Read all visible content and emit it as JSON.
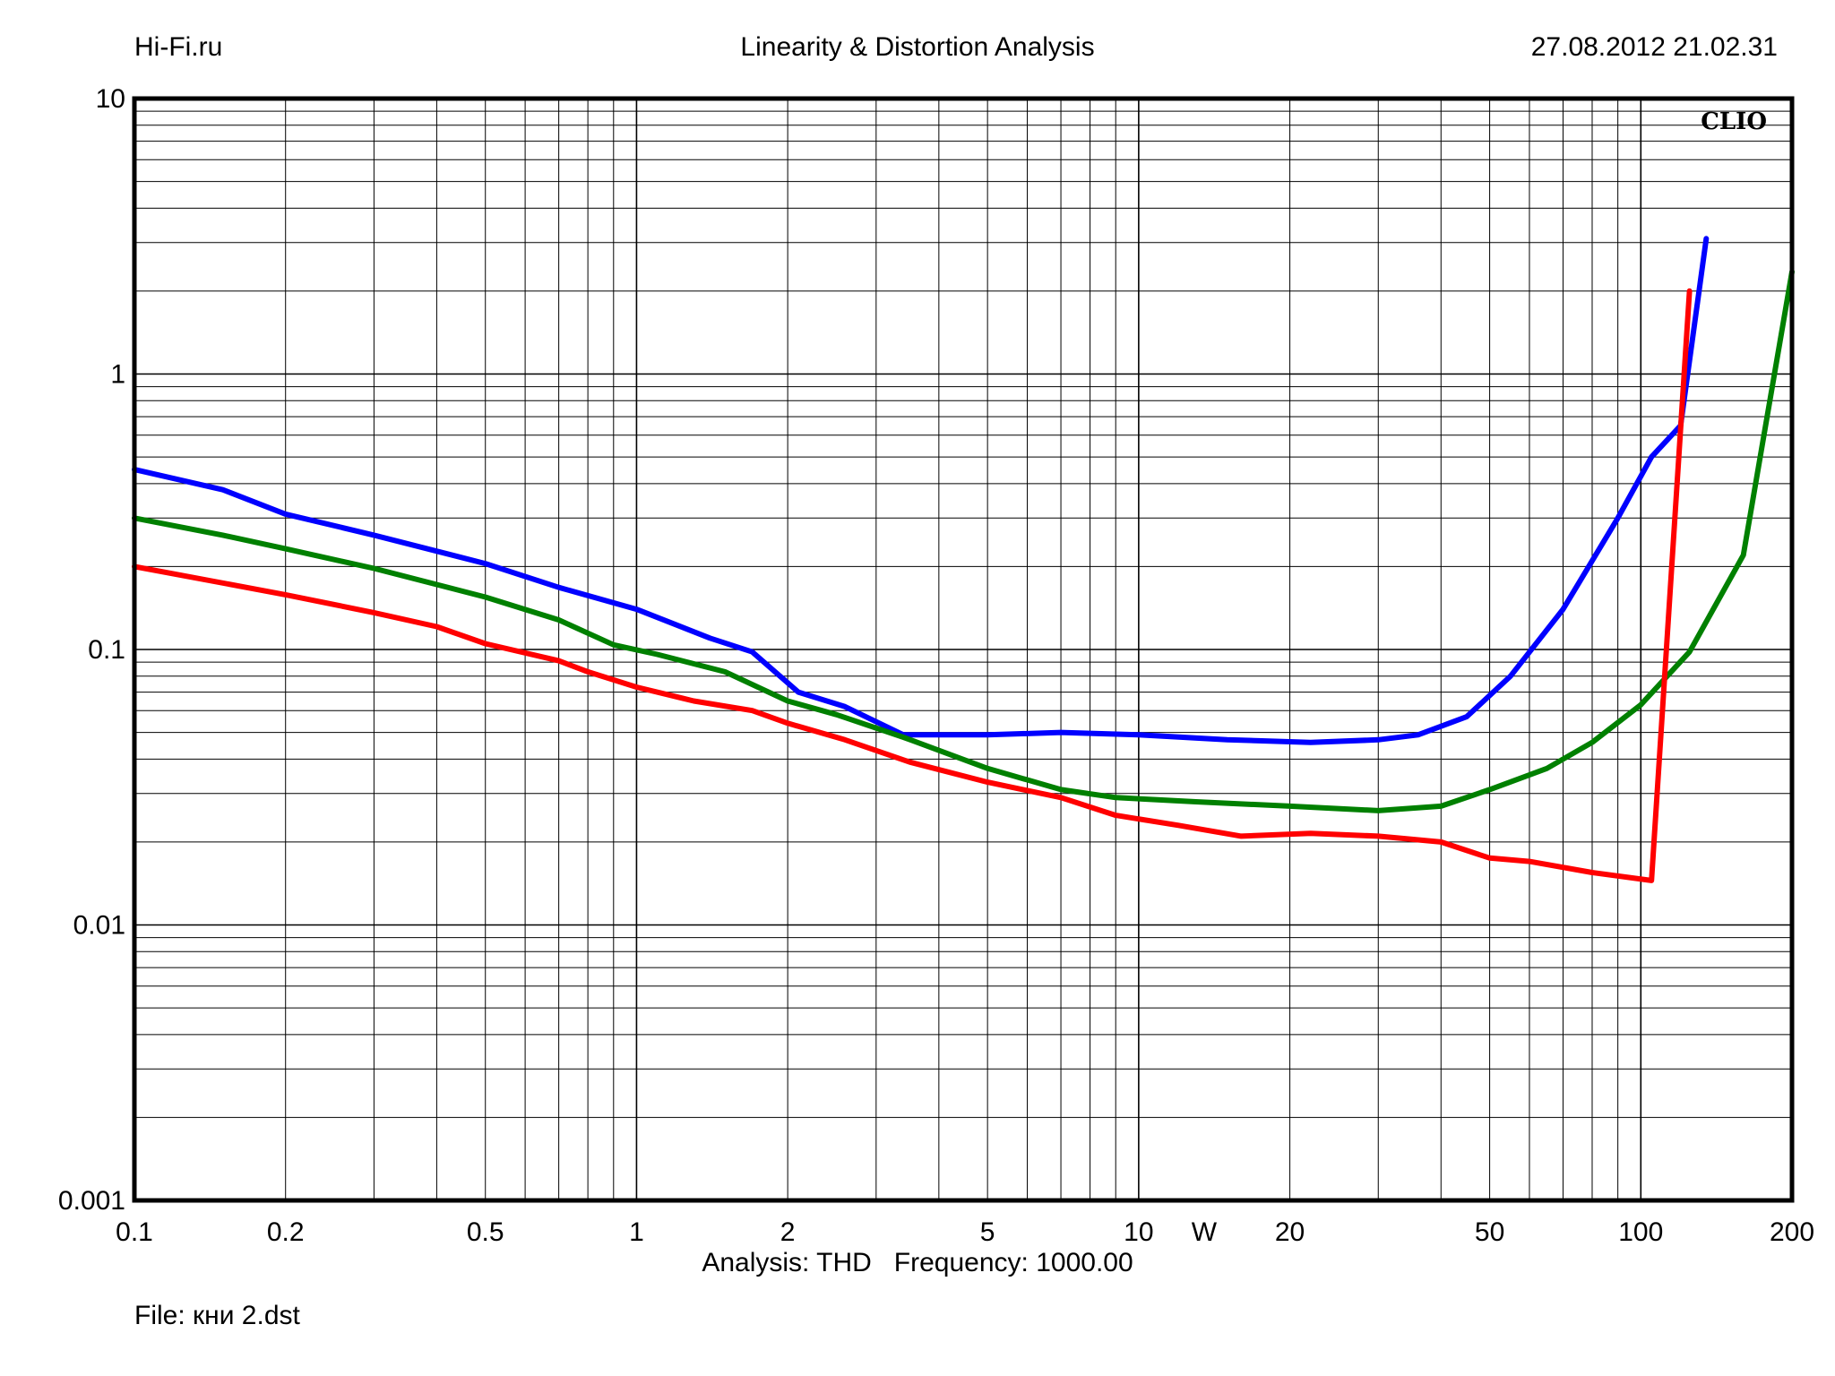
{
  "header": {
    "left": "Hi-Fi.ru",
    "center": "Linearity & Distortion Analysis",
    "right": "27.08.2012 21.02.31"
  },
  "watermark": "CLIO",
  "footer": {
    "analysis": "Analysis: THD   Frequency: 1000.00",
    "file": "File: кни 2.dst"
  },
  "chart_data": {
    "type": "line",
    "title": "Linearity & Distortion Analysis",
    "x_scale": "log",
    "y_scale": "log",
    "xlim": [
      0.1,
      200
    ],
    "ylim": [
      0.001,
      10
    ],
    "xlabel": "W",
    "grid": true,
    "x_ticks": [
      "0.1",
      "0.2",
      "0.5",
      "1",
      "2",
      "5",
      "10",
      "20",
      "50",
      "100",
      "200"
    ],
    "x_tick_values": [
      0.1,
      0.2,
      0.5,
      1,
      2,
      5,
      10,
      20,
      50,
      100,
      200
    ],
    "y_ticks": [
      "10",
      "1",
      "0.1",
      "0.01",
      "0.001"
    ],
    "y_tick_values": [
      10,
      1,
      0.1,
      0.01,
      0.001
    ],
    "series": [
      {
        "color": "#0000ff",
        "points": [
          [
            0.1,
            0.45
          ],
          [
            0.15,
            0.38
          ],
          [
            0.2,
            0.31
          ],
          [
            0.3,
            0.26
          ],
          [
            0.5,
            0.205
          ],
          [
            0.7,
            0.168
          ],
          [
            1,
            0.14
          ],
          [
            1.4,
            0.11
          ],
          [
            1.7,
            0.098
          ],
          [
            2.1,
            0.07
          ],
          [
            2.6,
            0.062
          ],
          [
            3.4,
            0.049
          ],
          [
            5,
            0.049
          ],
          [
            7,
            0.05
          ],
          [
            10,
            0.049
          ],
          [
            15,
            0.047
          ],
          [
            22,
            0.046
          ],
          [
            30,
            0.047
          ],
          [
            36,
            0.049
          ],
          [
            45,
            0.057
          ],
          [
            55,
            0.08
          ],
          [
            70,
            0.14
          ],
          [
            90,
            0.3
          ],
          [
            105,
            0.5
          ],
          [
            120,
            0.65
          ],
          [
            135,
            3.1
          ]
        ]
      },
      {
        "color": "#008000",
        "points": [
          [
            0.1,
            0.3
          ],
          [
            0.15,
            0.26
          ],
          [
            0.2,
            0.232
          ],
          [
            0.3,
            0.197
          ],
          [
            0.5,
            0.155
          ],
          [
            0.7,
            0.128
          ],
          [
            0.9,
            0.104
          ],
          [
            1.1,
            0.096
          ],
          [
            1.5,
            0.083
          ],
          [
            2,
            0.065
          ],
          [
            2.5,
            0.058
          ],
          [
            3.4,
            0.048
          ],
          [
            5,
            0.037
          ],
          [
            7,
            0.031
          ],
          [
            9,
            0.029
          ],
          [
            13,
            0.028
          ],
          [
            20,
            0.027
          ],
          [
            30,
            0.026
          ],
          [
            40,
            0.027
          ],
          [
            50,
            0.031
          ],
          [
            65,
            0.037
          ],
          [
            80,
            0.046
          ],
          [
            100,
            0.063
          ],
          [
            125,
            0.098
          ],
          [
            160,
            0.22
          ],
          [
            200,
            2.35
          ]
        ]
      },
      {
        "color": "#ff0000",
        "points": [
          [
            0.1,
            0.2
          ],
          [
            0.2,
            0.158
          ],
          [
            0.3,
            0.136
          ],
          [
            0.4,
            0.121
          ],
          [
            0.5,
            0.105
          ],
          [
            0.7,
            0.091
          ],
          [
            0.8,
            0.083
          ],
          [
            1,
            0.073
          ],
          [
            1.3,
            0.065
          ],
          [
            1.7,
            0.06
          ],
          [
            2,
            0.054
          ],
          [
            2.6,
            0.047
          ],
          [
            3.5,
            0.039
          ],
          [
            5,
            0.033
          ],
          [
            7,
            0.029
          ],
          [
            9,
            0.025
          ],
          [
            12,
            0.023
          ],
          [
            16,
            0.021
          ],
          [
            22,
            0.0215
          ],
          [
            30,
            0.021
          ],
          [
            40,
            0.02
          ],
          [
            50,
            0.0175
          ],
          [
            60,
            0.017
          ],
          [
            80,
            0.0155
          ],
          [
            105,
            0.0145
          ],
          [
            125,
            2.0
          ]
        ]
      }
    ]
  }
}
